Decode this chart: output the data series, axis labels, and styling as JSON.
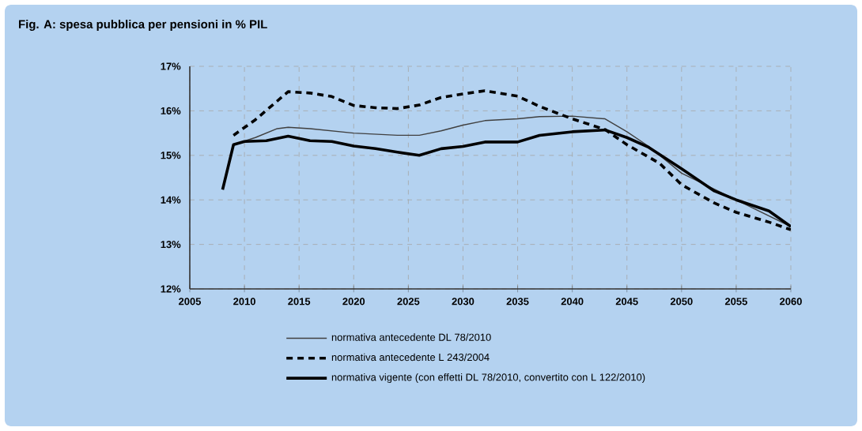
{
  "chart_data": {
    "type": "line",
    "title": "Fig. A: spesa pubblica per pensioni in % PIL",
    "xlim": [
      2005,
      2060
    ],
    "xticks": [
      2005,
      2010,
      2015,
      2020,
      2025,
      2030,
      2035,
      2040,
      2045,
      2050,
      2055,
      2060
    ],
    "ylim": [
      12,
      17
    ],
    "yticks": [
      {
        "value": 12,
        "label": "12%"
      },
      {
        "value": 13,
        "label": "13%"
      },
      {
        "value": 14,
        "label": "14%"
      },
      {
        "value": 15,
        "label": "15%"
      },
      {
        "value": 16,
        "label": "16%"
      },
      {
        "value": 17,
        "label": "17%"
      }
    ],
    "grid": true,
    "legend": "bottom",
    "marker": "none",
    "series": [
      {
        "name": "normativa antecedente DL 78/2010",
        "color": "#404040",
        "line_style": "solid",
        "x": [
          2009,
          2011,
          2013,
          2014,
          2016,
          2020,
          2024,
          2026,
          2028,
          2030,
          2032,
          2035,
          2037,
          2040,
          2043,
          2045,
          2047,
          2050,
          2055,
          2060
        ],
        "values": [
          15.24,
          15.4,
          15.6,
          15.63,
          15.6,
          15.5,
          15.45,
          15.45,
          15.55,
          15.68,
          15.78,
          15.82,
          15.87,
          15.88,
          15.82,
          15.53,
          15.2,
          14.6,
          14.0,
          13.4
        ]
      },
      {
        "name": "normativa antecedente L 243/2004",
        "color": "#000000",
        "line_style": "dashed",
        "x": [
          2009,
          2011,
          2013,
          2014,
          2016,
          2018,
          2020,
          2022,
          2024,
          2026,
          2028,
          2030,
          2032,
          2035,
          2037,
          2040,
          2043,
          2045,
          2048,
          2050,
          2053,
          2055,
          2058,
          2060
        ],
        "values": [
          15.45,
          15.8,
          16.22,
          16.43,
          16.4,
          16.32,
          16.12,
          16.07,
          16.05,
          16.13,
          16.3,
          16.38,
          16.45,
          16.33,
          16.1,
          15.82,
          15.58,
          15.24,
          14.82,
          14.34,
          13.93,
          13.72,
          13.5,
          13.33
        ]
      },
      {
        "name": "normativa vigente (con effetti DL 78/2010, convertito con L 122/2010)",
        "color": "#000000",
        "line_style": "solid",
        "x": [
          2008,
          2009,
          2010,
          2012,
          2014,
          2016,
          2018,
          2020,
          2022,
          2024,
          2026,
          2028,
          2030,
          2032,
          2035,
          2037,
          2040,
          2043,
          2045,
          2047,
          2050,
          2053,
          2055,
          2058,
          2060
        ],
        "values": [
          14.23,
          15.24,
          15.31,
          15.33,
          15.43,
          15.33,
          15.31,
          15.21,
          15.15,
          15.07,
          15.0,
          15.15,
          15.2,
          15.3,
          15.3,
          15.45,
          15.53,
          15.57,
          15.4,
          15.18,
          14.7,
          14.2,
          14.0,
          13.75,
          13.4
        ]
      }
    ]
  }
}
